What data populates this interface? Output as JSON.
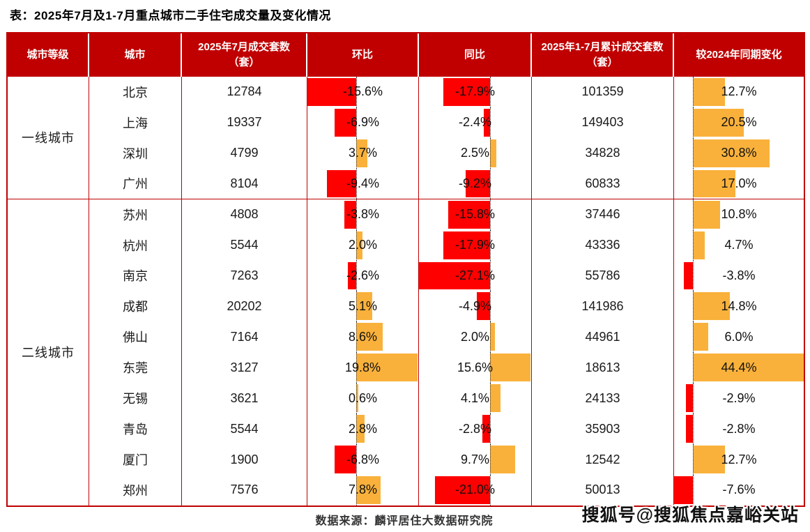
{
  "title": "表：2025年7月及1-7月重点城市二手住宅成交量及变化情况",
  "footer": {
    "source": "数据来源：麟评居住大数据研究院",
    "watermark": "搜狐号@搜狐焦点嘉峪关站"
  },
  "colors": {
    "header_bg": "#c00000",
    "table_border": "#c00000",
    "bar_negative": "#fe0000",
    "bar_positive": "#f9b13b",
    "header_text": "#ffffff",
    "body_text": "#1a1a1a"
  },
  "chart_data": {
    "type": "table",
    "title": "表：2025年7月及1-7月重点城市二手住宅成交量及变化情况",
    "columns": [
      "城市等级",
      "城市",
      "2025年7月成交套数（套）",
      "环比",
      "同比",
      "2025年1-7月累计成交套数（套）",
      "较2024年同期变化"
    ],
    "databar_columns_note": "环比 / 同比 / 较2024年同期变化 are data-bar cells: red bars = negative, orange bars = positive, scaled to column min..max with dotted zero line",
    "tiers": [
      {
        "label": "一线城市",
        "start": 0,
        "end": 4
      },
      {
        "label": "二线城市",
        "start": 4,
        "end": 14
      }
    ],
    "rows": [
      {
        "tier": "一线城市",
        "city": "北京",
        "jul_units": 12784,
        "mom_pct": -15.6,
        "yoy_pct": -17.9,
        "cum_units": 101359,
        "vs_2024_pct": 12.7
      },
      {
        "tier": "一线城市",
        "city": "上海",
        "jul_units": 19337,
        "mom_pct": -6.9,
        "yoy_pct": -2.4,
        "cum_units": 149403,
        "vs_2024_pct": 20.5
      },
      {
        "tier": "一线城市",
        "city": "深圳",
        "jul_units": 4799,
        "mom_pct": 3.7,
        "yoy_pct": 2.5,
        "cum_units": 34828,
        "vs_2024_pct": 30.8
      },
      {
        "tier": "一线城市",
        "city": "广州",
        "jul_units": 8104,
        "mom_pct": -9.4,
        "yoy_pct": -9.2,
        "cum_units": 60833,
        "vs_2024_pct": 17.0
      },
      {
        "tier": "二线城市",
        "city": "苏州",
        "jul_units": 4808,
        "mom_pct": -3.8,
        "yoy_pct": -15.8,
        "cum_units": 37446,
        "vs_2024_pct": 10.8
      },
      {
        "tier": "二线城市",
        "city": "杭州",
        "jul_units": 5544,
        "mom_pct": 2.0,
        "yoy_pct": -17.9,
        "cum_units": 43336,
        "vs_2024_pct": 4.7
      },
      {
        "tier": "二线城市",
        "city": "南京",
        "jul_units": 7263,
        "mom_pct": -2.6,
        "yoy_pct": -27.1,
        "cum_units": 55786,
        "vs_2024_pct": -3.8
      },
      {
        "tier": "二线城市",
        "city": "成都",
        "jul_units": 20202,
        "mom_pct": 5.1,
        "yoy_pct": -4.9,
        "cum_units": 141986,
        "vs_2024_pct": 14.8
      },
      {
        "tier": "二线城市",
        "city": "佛山",
        "jul_units": 7164,
        "mom_pct": 8.6,
        "yoy_pct": 2.0,
        "cum_units": 44961,
        "vs_2024_pct": 6.0
      },
      {
        "tier": "二线城市",
        "city": "东莞",
        "jul_units": 3127,
        "mom_pct": 19.8,
        "yoy_pct": 15.6,
        "cum_units": 18613,
        "vs_2024_pct": 44.4
      },
      {
        "tier": "二线城市",
        "city": "无锡",
        "jul_units": 3621,
        "mom_pct": 0.6,
        "yoy_pct": 4.1,
        "cum_units": 24133,
        "vs_2024_pct": -2.9
      },
      {
        "tier": "二线城市",
        "city": "青岛",
        "jul_units": 5544,
        "mom_pct": 2.8,
        "yoy_pct": -2.8,
        "cum_units": 35903,
        "vs_2024_pct": -2.8
      },
      {
        "tier": "二线城市",
        "city": "厦门",
        "jul_units": 1900,
        "mom_pct": -6.8,
        "yoy_pct": 9.7,
        "cum_units": 12542,
        "vs_2024_pct": 12.7
      },
      {
        "tier": "二线城市",
        "city": "郑州",
        "jul_units": 7576,
        "mom_pct": 7.8,
        "yoy_pct": -21.0,
        "cum_units": 50013,
        "vs_2024_pct": -7.6
      }
    ]
  }
}
